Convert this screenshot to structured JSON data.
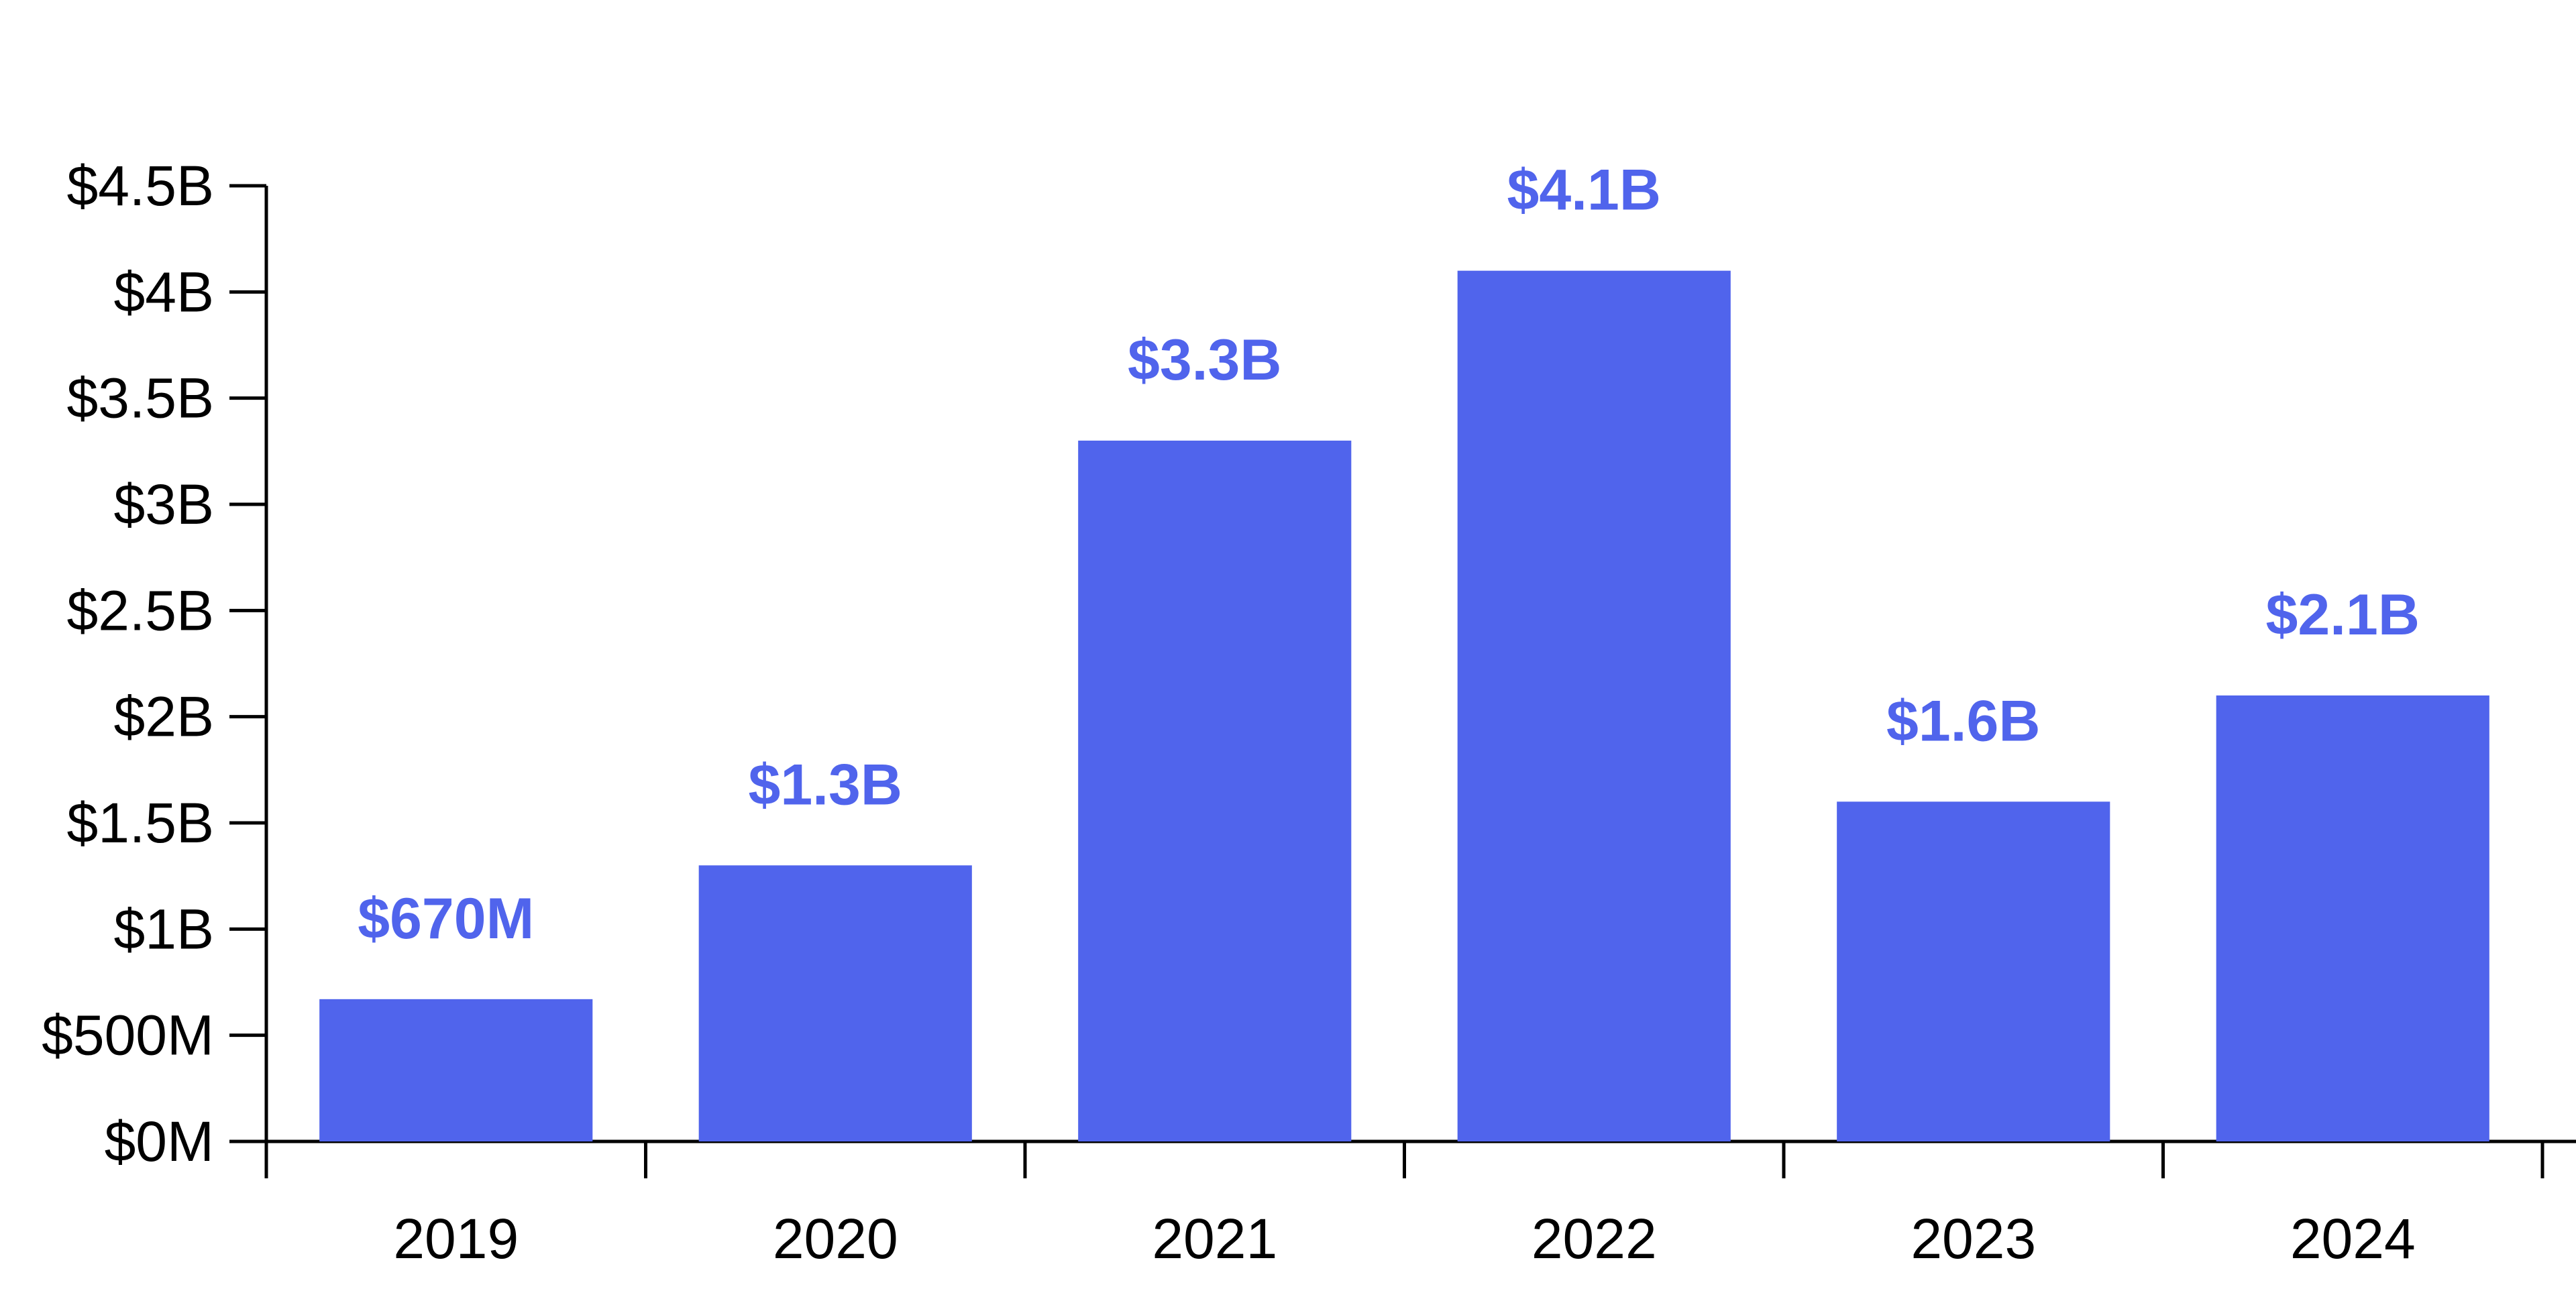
{
  "chart_data": {
    "type": "bar",
    "title": "",
    "xlabel": "",
    "ylabel": "",
    "categories": [
      "2019",
      "2020",
      "2021",
      "2022",
      "2023",
      "2024"
    ],
    "values": [
      670000000,
      1300000000,
      3300000000,
      4100000000,
      1600000000,
      2100000000
    ],
    "value_labels": [
      "$670M",
      "$1.3B",
      "$3.3B",
      "$4.1B",
      "$1.6B",
      "$2.1B"
    ],
    "ylim": [
      0,
      4500000000
    ],
    "y_ticks": [
      0,
      500000000,
      1000000000,
      1500000000,
      2000000000,
      2500000000,
      3000000000,
      3500000000,
      4000000000,
      4500000000
    ],
    "y_tick_labels": [
      "$0M",
      "$500M",
      "$1B",
      "$1.5B",
      "$2B",
      "$2.5B",
      "$3B",
      "$3.5B",
      "$4B",
      "$4.5B"
    ],
    "grid": false,
    "legend": "none",
    "bar_color": "#5064ec",
    "label_color": "#5064ec",
    "axis_color": "#000000"
  }
}
